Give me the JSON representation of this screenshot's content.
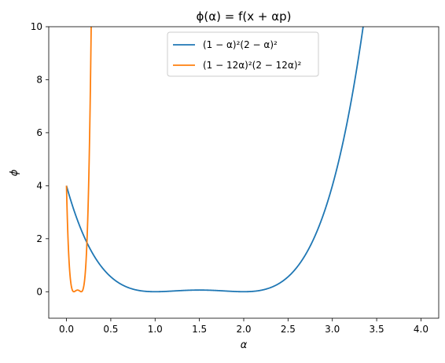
{
  "chart_data": {
    "type": "line",
    "title": "ϕ(α) = f(x + αp)",
    "xlabel": "α",
    "ylabel": "ϕ",
    "xlim": [
      -0.2,
      4.2
    ],
    "ylim": [
      -1,
      10
    ],
    "xticks": [
      "0.0",
      "0.5",
      "1.0",
      "1.5",
      "2.0",
      "2.5",
      "3.0",
      "3.5",
      "4.0"
    ],
    "xtick_values": [
      0,
      0.5,
      1,
      1.5,
      2,
      2.5,
      3,
      3.5,
      4
    ],
    "yticks": [
      "0",
      "2",
      "4",
      "6",
      "8",
      "10"
    ],
    "ytick_values": [
      0,
      2,
      4,
      6,
      8,
      10
    ],
    "grid": false,
    "legend_position": "top-center",
    "series": [
      {
        "name": "(1 − α)²(2 − α)²",
        "color": "#1f77b4",
        "scale": 1,
        "x_range": [
          0,
          4
        ]
      },
      {
        "name": "(1 − 12α)²(2 − 12α)²",
        "color": "#ff7f0e",
        "scale": 12,
        "x_range": [
          0,
          4
        ]
      }
    ]
  }
}
